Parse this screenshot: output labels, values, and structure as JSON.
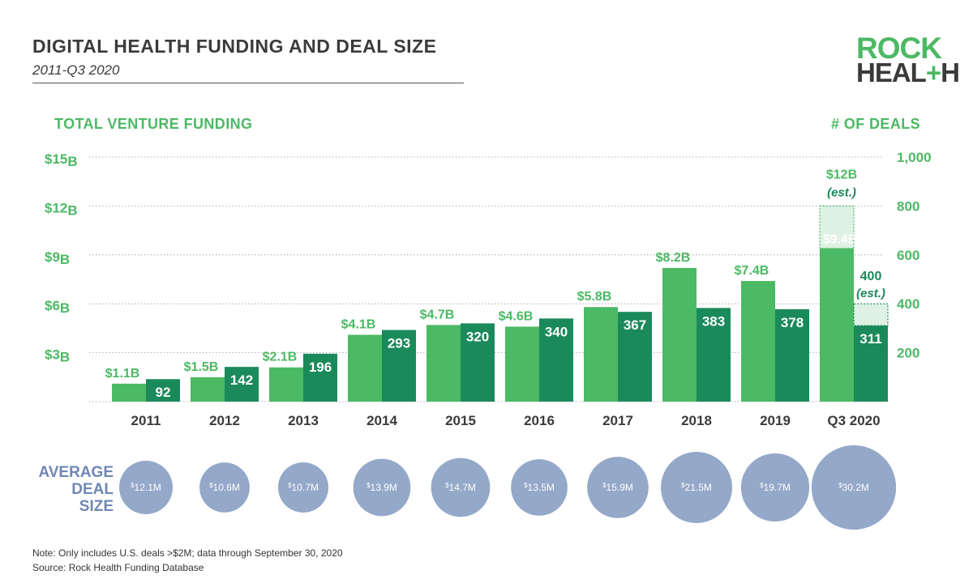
{
  "header": {
    "title": "DIGITAL HEALTH FUNDING AND DEAL SIZE",
    "subtitle": "2011-Q3 2020"
  },
  "logo": {
    "line1": "ROCK",
    "line2_left": "HEAL",
    "line2_plus": "+",
    "line2_right": "H"
  },
  "colors": {
    "funding": "#4cb964",
    "deals": "#1b8a5a",
    "estimate_fill": "#dff1e3",
    "deal_size_bubble": "#94a8c9",
    "deal_size_text": "#6f87b4"
  },
  "chart_data": {
    "type": "bar",
    "left_axis_title": "TOTAL VENTURE FUNDING",
    "right_axis_title": "# OF DEALS",
    "categories": [
      "2011",
      "2012",
      "2013",
      "2014",
      "2015",
      "2016",
      "2017",
      "2018",
      "2019",
      "Q3 2020"
    ],
    "left_axis": {
      "ylim": [
        0,
        15
      ],
      "unit": "B",
      "ticks": [
        3,
        6,
        9,
        12,
        15
      ],
      "tick_labels": [
        "$3",
        "$6",
        "$9",
        "$12",
        "$15"
      ]
    },
    "right_axis": {
      "ylim": [
        0,
        1000
      ],
      "ticks": [
        200,
        400,
        600,
        800,
        1000
      ],
      "tick_labels": [
        "200",
        "400",
        "600",
        "800",
        "1,000"
      ]
    },
    "grid": true,
    "series": [
      {
        "key": "funding",
        "axis": "left",
        "values": [
          1.1,
          1.5,
          2.1,
          4.1,
          4.7,
          4.6,
          5.8,
          8.2,
          7.4,
          9.4
        ],
        "labels": [
          "$1.1B",
          "$1.5B",
          "$2.1B",
          "$4.1B",
          "$4.7B",
          "$4.6B",
          "$5.8B",
          "$8.2B",
          "$7.4B",
          "$9.4B"
        ]
      },
      {
        "key": "deals",
        "axis": "right",
        "values": [
          92,
          142,
          196,
          293,
          320,
          340,
          367,
          383,
          378,
          311
        ],
        "labels": [
          "92",
          "142",
          "196",
          "293",
          "320",
          "340",
          "367",
          "383",
          "378",
          "311"
        ]
      }
    ],
    "estimates": {
      "funding": {
        "category": "Q3 2020",
        "value": 12,
        "label": "$12B",
        "note": "(est.)"
      },
      "deals": {
        "category": "Q3 2020",
        "value": 400,
        "label": "400",
        "note": "(est.)"
      }
    },
    "average_deal_size": {
      "label_lines": [
        "AVERAGE",
        "DEAL",
        "SIZE"
      ],
      "values": [
        12.1,
        10.6,
        10.7,
        13.9,
        14.7,
        13.5,
        15.9,
        21.5,
        19.7,
        30.2
      ],
      "labels": [
        "12.1M",
        "10.6M",
        "10.7M",
        "13.9M",
        "14.7M",
        "13.5M",
        "15.9M",
        "21.5M",
        "19.7M",
        "30.2M"
      ],
      "prefix": "$"
    }
  },
  "footer": {
    "note": "Note: Only includes U.S. deals >$2M; data through September 30, 2020",
    "source": "Source: Rock Health Funding Database"
  }
}
